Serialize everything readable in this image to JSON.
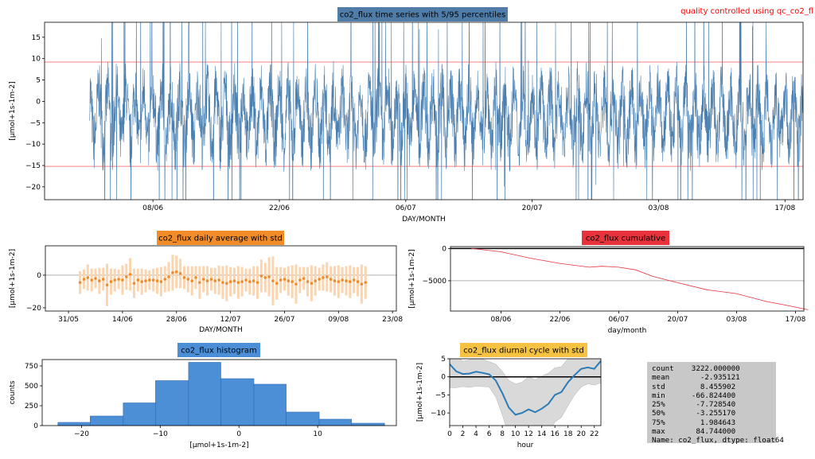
{
  "corner_note": "quality controlled using qc_co2_fl",
  "colors": {
    "timeseries": "#4a7fb0",
    "timeseries_title_bg": "#4f7da8",
    "percentile_line": "#f08080",
    "daily": "#f28c28",
    "daily_err": "#fbd5b0",
    "cumulative": "#e8323c",
    "histogram": "#4c8fd6",
    "histogram_edge": "#2f6bb0",
    "diurnal": "#2c7bb6",
    "diurnal_band": "#d9d9d9",
    "diurnal_title_bg": "#f5c242"
  },
  "chart_data": [
    {
      "id": "timeseries",
      "type": "line",
      "title": "co2_flux time series with 5/95 percentiles",
      "xlabel": "DAY/MONTH",
      "ylabel": "[μmol+1s-1m-2]",
      "ylim": [
        -23,
        18.5
      ],
      "yticks": [
        -20,
        -15,
        -10,
        -5,
        0,
        5,
        10,
        15
      ],
      "x_start": "2020-05-27",
      "x_end": "2020-08-19",
      "xticks": [
        "08/06",
        "22/06",
        "06/07",
        "20/07",
        "03/08",
        "17/08"
      ],
      "percentiles": {
        "p5": -15.2,
        "p95": 9.2
      },
      "series_note": "half-hourly flux approx. 3222 values, fluctuating mostly between -15 and 8 with spikes beyond the axis limits"
    },
    {
      "id": "daily",
      "type": "scatter",
      "title": "co2_flux daily average with std",
      "xlabel": "DAY/MONTH",
      "ylabel": "[μmol+1s-1m-2]",
      "ylim": [
        -22,
        18
      ],
      "yticks": [
        -20,
        0
      ],
      "x_start": "2020-05-25",
      "xticks": [
        "31/05",
        "14/06",
        "28/06",
        "12/07",
        "26/07",
        "09/08",
        "23/08"
      ],
      "first_day": "2020-06-03",
      "means": [
        -4.5,
        -2.5,
        -1.5,
        -3.0,
        -2.0,
        -3.5,
        -2.5,
        -6.0,
        -4.0,
        -3.0,
        -2.5,
        -3.0,
        -1.0,
        0.5,
        -5.0,
        -3.0,
        -4.0,
        -3.5,
        -3.0,
        -3.0,
        -3.5,
        -4.0,
        -2.5,
        -1.0,
        1.5,
        2.0,
        1.0,
        -1.5,
        -2.5,
        -3.5,
        -1.5,
        -4.5,
        -2.5,
        -3.5,
        -2.5,
        -3.5,
        -3.0,
        -4.5,
        -5.0,
        -4.0,
        -3.5,
        -4.5,
        -4.0,
        -3.0,
        -4.0,
        -3.5,
        -4.5,
        -0.5,
        -1.5,
        -1.0,
        -3.5,
        -5.0,
        -3.0,
        -2.5,
        -3.5,
        -4.0,
        -5.5,
        -3.0,
        -2.0,
        -4.0,
        -5.0,
        -3.5,
        -2.5,
        -1.5,
        -1.0,
        -2.5,
        -3.5,
        -4.0,
        -3.0,
        -3.5,
        -4.0,
        -3.0,
        -4.0,
        -5.5,
        -4.5
      ],
      "stds": [
        7,
        6,
        8,
        7,
        6,
        8,
        7,
        13,
        8,
        7,
        6,
        9,
        8,
        10,
        9,
        7,
        8,
        7,
        6,
        7,
        8,
        9,
        8,
        9,
        11,
        10,
        9,
        7,
        8,
        9,
        7,
        10,
        8,
        9,
        7,
        8,
        9,
        10,
        11,
        9,
        8,
        10,
        9,
        7,
        8,
        9,
        10,
        10,
        9,
        12,
        15,
        10,
        8,
        7,
        9,
        10,
        12,
        8,
        7,
        9,
        11,
        9,
        7,
        8,
        9,
        8,
        9,
        10,
        8,
        9,
        10,
        8,
        9,
        12,
        10
      ]
    },
    {
      "id": "cumulative",
      "type": "line",
      "title": "co2_flux cumulative",
      "xlabel": "day/month",
      "ylabel": "[μmol+1s-1m-2]",
      "ylim": [
        -9700,
        300
      ],
      "yticks": [
        -5000,
        0
      ],
      "xticks": [
        "08/06",
        "22/06",
        "06/07",
        "20/07",
        "03/08",
        "17/08"
      ],
      "x_start": "2020-05-27",
      "points": [
        [
          "2020-06-01",
          0
        ],
        [
          "2020-06-08",
          -500
        ],
        [
          "2020-06-15",
          -1500
        ],
        [
          "2020-06-22",
          -2300
        ],
        [
          "2020-06-29",
          -2900
        ],
        [
          "2020-07-02",
          -2750
        ],
        [
          "2020-07-06",
          -2900
        ],
        [
          "2020-07-10",
          -3300
        ],
        [
          "2020-07-14",
          -4300
        ],
        [
          "2020-07-20",
          -5300
        ],
        [
          "2020-07-27",
          -6400
        ],
        [
          "2020-08-03",
          -7000
        ],
        [
          "2020-08-10",
          -8200
        ],
        [
          "2020-08-14",
          -8700
        ],
        [
          "2020-08-20",
          -9500
        ]
      ]
    },
    {
      "id": "histogram",
      "type": "bar",
      "title": "co2_flux histogram",
      "xlabel": "[μmol+1s-1m-2]",
      "ylabel": "counts",
      "bin_edges": [
        -23,
        -18.9,
        -14.7,
        -10.6,
        -6.4,
        -2.3,
        1.9,
        6.0,
        10.2,
        14.3,
        18.5
      ],
      "counts": [
        40,
        120,
        285,
        565,
        795,
        590,
        520,
        170,
        80,
        30
      ],
      "xlim": [
        -25,
        20
      ],
      "ylim": [
        0,
        830
      ],
      "xticks": [
        -20,
        -10,
        0,
        10
      ],
      "yticks": [
        0,
        250,
        500,
        750
      ]
    },
    {
      "id": "diurnal",
      "type": "line",
      "title": "co2_flux diurnal cycle with std",
      "xlabel": "hour",
      "ylabel": "[μmol+1s-1m-2]",
      "xlim": [
        0,
        23
      ],
      "ylim": [
        -13.5,
        5
      ],
      "xticks": [
        0,
        2,
        4,
        6,
        8,
        10,
        12,
        14,
        16,
        18,
        20,
        22
      ],
      "yticks": [
        -10,
        -5,
        0,
        5
      ],
      "hours": [
        0,
        1,
        2,
        3,
        4,
        5,
        6,
        7,
        8,
        9,
        10,
        11,
        12,
        13,
        14,
        15,
        16,
        17,
        18,
        19,
        20,
        21,
        22,
        23
      ],
      "mean": [
        3.5,
        1.5,
        0.8,
        0.9,
        1.4,
        1.1,
        0.7,
        -1.0,
        -4.5,
        -8.5,
        -10.5,
        -10.0,
        -9.0,
        -9.8,
        -8.8,
        -7.5,
        -5.0,
        -4.2,
        -1.5,
        0.5,
        2.2,
        2.6,
        2.2,
        4.4
      ],
      "std": [
        6.5,
        4.5,
        3.5,
        3.8,
        4.0,
        3.8,
        3.5,
        4.5,
        6.0,
        7.5,
        8.5,
        8.5,
        9.0,
        9.0,
        9.0,
        8.5,
        7.5,
        7.0,
        6.5,
        5.5,
        5.0,
        4.5,
        4.5,
        6.0
      ]
    }
  ],
  "stats": {
    "lines": [
      "count    3222.000000",
      "mean       -2.935121",
      "std        8.455902",
      "min      -66.824400",
      "25%       -7.728540",
      "50%       -3.255170",
      "75%        1.984643",
      "max       84.744000",
      "Name: co2_flux, dtype: float64"
    ]
  }
}
